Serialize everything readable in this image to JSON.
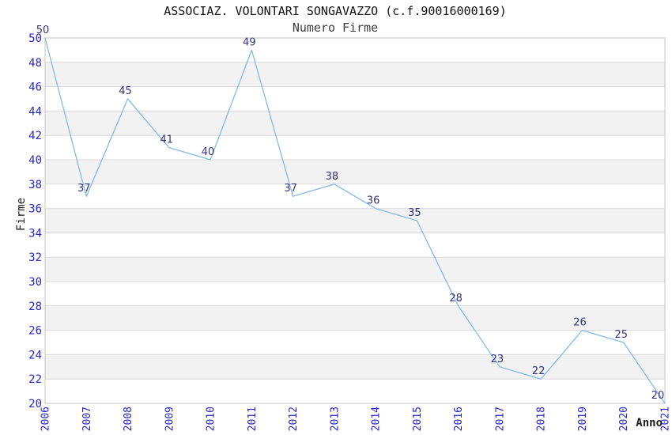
{
  "chart_data": {
    "type": "line",
    "title": "ASSOCIAZ. VOLONTARI SONGAVAZZO (c.f.90016000169)",
    "subtitle": "Numero Firme",
    "xlabel": "Anno",
    "ylabel": "Firme",
    "categories": [
      "2006",
      "2007",
      "2008",
      "2009",
      "2010",
      "2011",
      "2012",
      "2013",
      "2014",
      "2015",
      "2016",
      "2017",
      "2018",
      "2019",
      "2020",
      "2021"
    ],
    "values": [
      50,
      37,
      45,
      41,
      40,
      49,
      37,
      38,
      36,
      35,
      28,
      23,
      22,
      26,
      25,
      20
    ],
    "ylim": [
      20,
      50
    ],
    "ytick_step": 2,
    "legend": "none",
    "grid": "horizontal-bands",
    "colors": {
      "line": "#85b9e8",
      "data_label": "#333380",
      "tick_label": "#2626c9",
      "gridline": "#d9d9d9",
      "band": "#f2f2f2",
      "border": "#c4c4c4",
      "title": "#111111",
      "subtitle": "#3d3d3d",
      "axis_title": "#1a1a1a"
    }
  }
}
